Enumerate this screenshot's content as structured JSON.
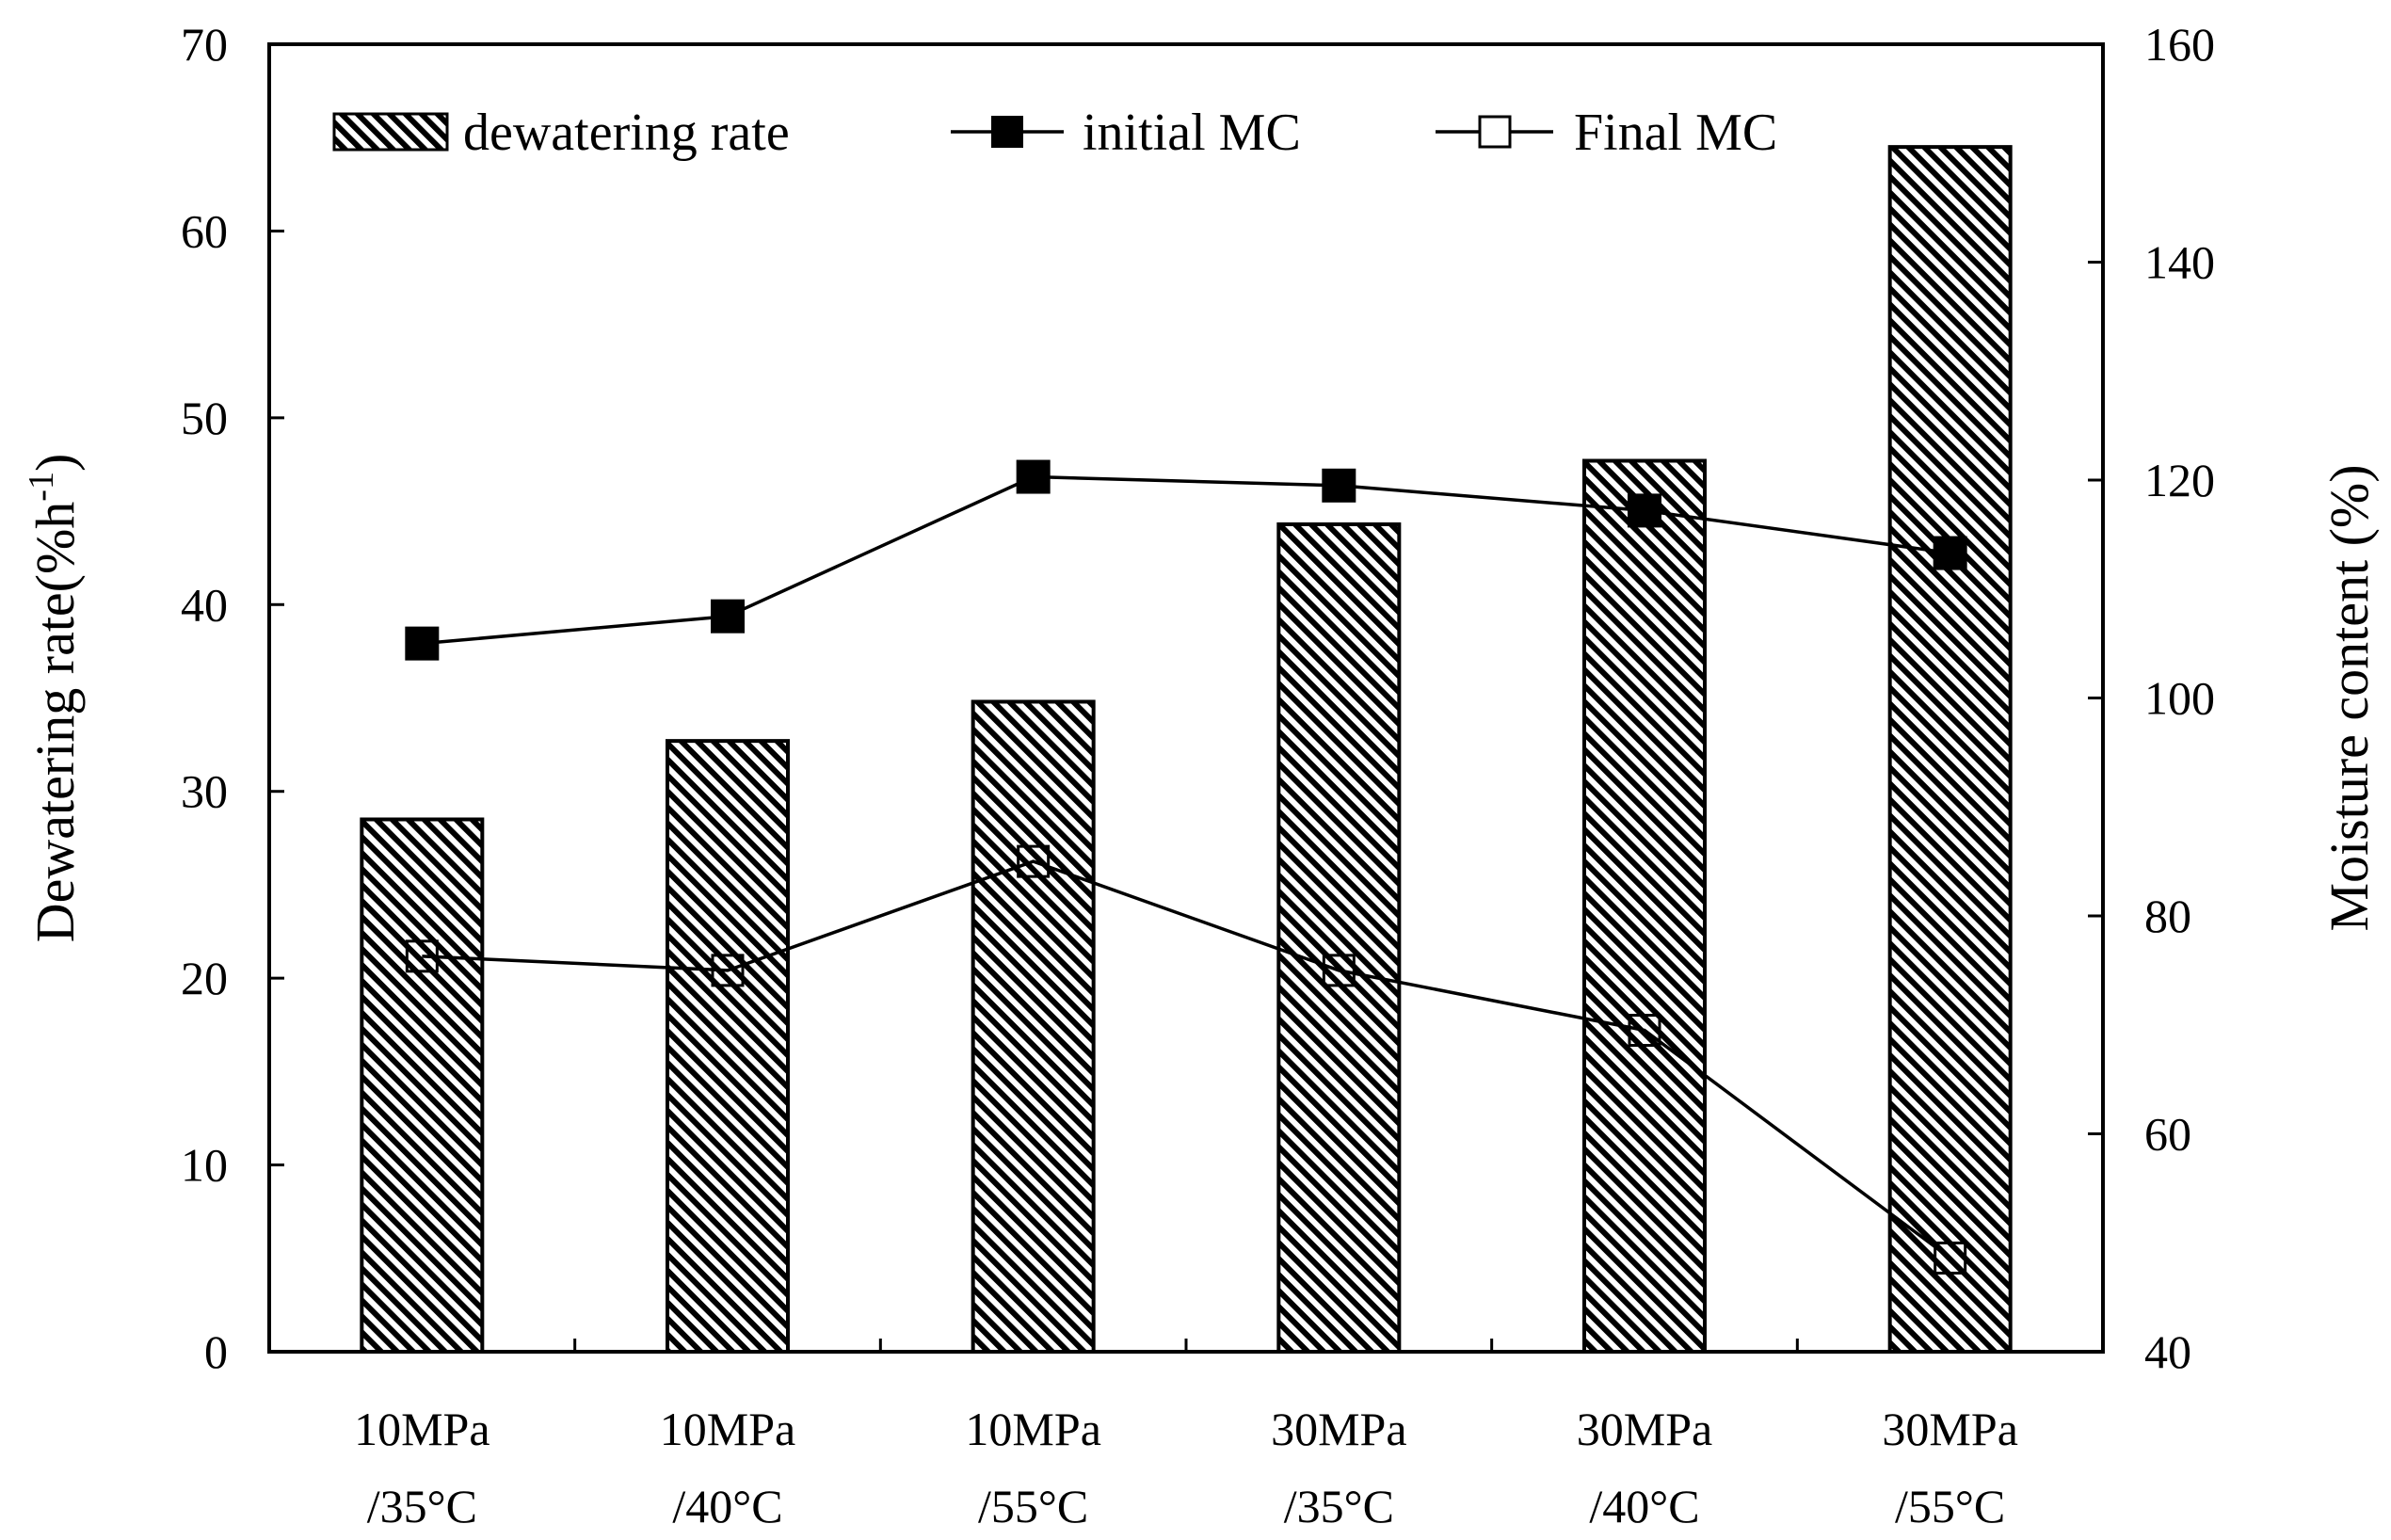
{
  "chart_data": {
    "type": "bar",
    "title": "",
    "categories": [
      [
        "10MPa",
        "/35°C"
      ],
      [
        "10MPa",
        "/40°C"
      ],
      [
        "10MPa",
        "/55°C"
      ],
      [
        "30MPa",
        "/35°C"
      ],
      [
        "30MPa",
        "/40°C"
      ],
      [
        "30MPa",
        "/55°C"
      ]
    ],
    "ylabel_left": {
      "main": "Dewatering  rate(%h",
      "sup": "-1",
      "end": ")"
    },
    "ylabel_right": "Moisture  content  (%)",
    "ylim_left": [
      0,
      70
    ],
    "yticks_left": [
      0,
      10,
      20,
      30,
      40,
      50,
      60,
      70
    ],
    "ylim_right": [
      40,
      160
    ],
    "yticks_right": [
      40,
      60,
      80,
      100,
      120,
      140,
      160
    ],
    "series": [
      {
        "name": "dewatering rate",
        "type": "bar",
        "axis": "left",
        "pattern": "diagonal-hatch",
        "values": [
          28.5,
          32.7,
          34.8,
          44.3,
          47.7,
          64.5
        ]
      },
      {
        "name": "initial MC",
        "type": "line",
        "axis": "right",
        "marker": "filled-square",
        "values": [
          105,
          107.5,
          120.3,
          119.5,
          117.2,
          113.3
        ]
      },
      {
        "name": "Final MC",
        "type": "line",
        "axis": "right",
        "marker": "open-square",
        "values": [
          76.3,
          75,
          85,
          75,
          69.5,
          48.6
        ]
      }
    ],
    "legend_position": "top",
    "grid": false
  },
  "colors": {
    "bar_fill": "#ffffff",
    "hatch": "#000000",
    "line": "#000000"
  }
}
